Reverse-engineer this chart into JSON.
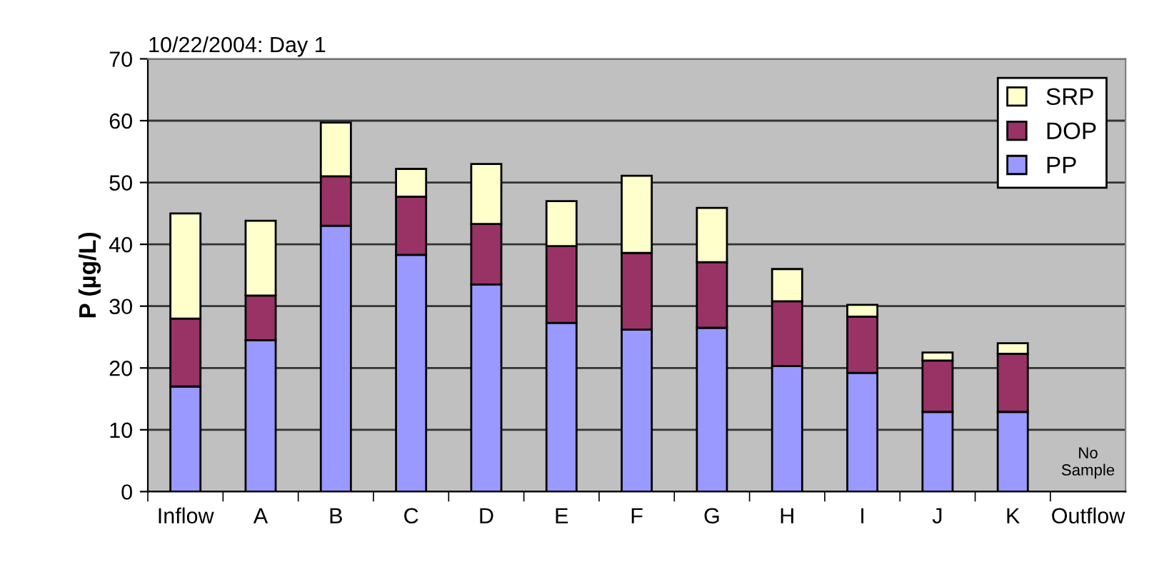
{
  "chart_data": {
    "type": "bar",
    "stacked": true,
    "title": "10/22/2004: Day 1",
    "ylabel": "P (µg/L)",
    "categories": [
      "Inflow",
      "A",
      "B",
      "C",
      "D",
      "E",
      "F",
      "G",
      "H",
      "I",
      "J",
      "K",
      "Outflow"
    ],
    "series": [
      {
        "name": "PP",
        "color": "#9999ff",
        "values": [
          17,
          24.5,
          43,
          38.3,
          33.5,
          27.3,
          26.2,
          26.5,
          20.3,
          19.2,
          12.9,
          12.9,
          null
        ]
      },
      {
        "name": "DOP",
        "color": "#993366",
        "values": [
          11,
          7.2,
          8,
          9.4,
          9.8,
          12.4,
          12.4,
          10.6,
          10.5,
          9.1,
          8.3,
          9.4,
          null
        ]
      },
      {
        "name": "SRP",
        "color": "#ffffcc",
        "values": [
          17,
          12.1,
          8.7,
          4.5,
          9.7,
          7.3,
          12.5,
          8.8,
          5.2,
          1.9,
          1.3,
          1.7,
          null
        ]
      }
    ],
    "ylim": [
      0,
      70
    ],
    "yticks": [
      0,
      10,
      20,
      30,
      40,
      50,
      60,
      70
    ],
    "grid": "y",
    "legend": "top right",
    "annotations": [
      "No\nSample"
    ]
  }
}
